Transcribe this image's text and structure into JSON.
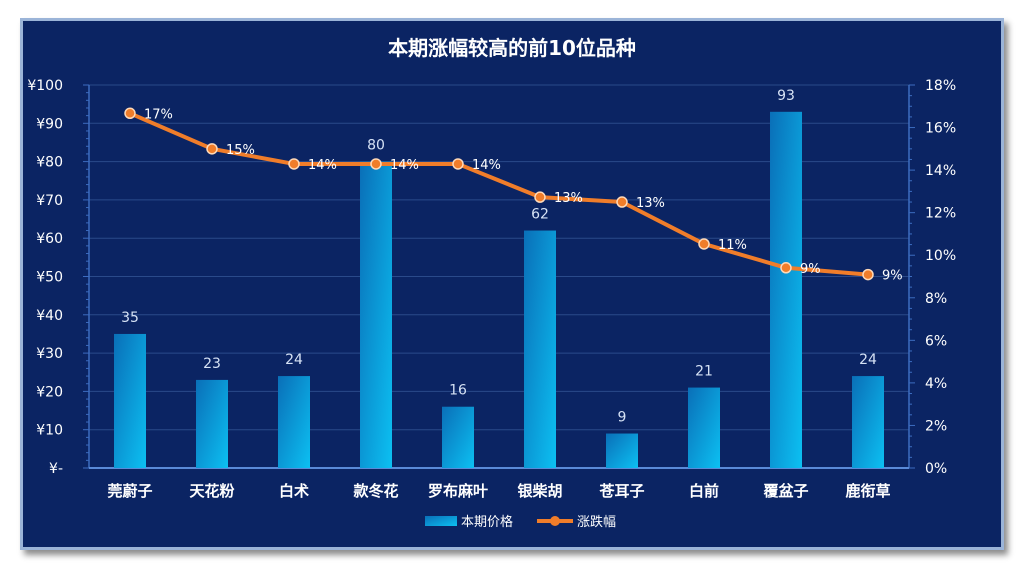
{
  "chart_data": {
    "type": "bar",
    "title": "本期涨幅较高的前10位品种",
    "categories": [
      "莞蔚子",
      "天花粉",
      "白术",
      "款冬花",
      "罗布麻叶",
      "银柴胡",
      "苍耳子",
      "白前",
      "覆盆子",
      "鹿衔草"
    ],
    "series": [
      {
        "name": "本期价格",
        "type": "bar",
        "axis": "left",
        "values": [
          35,
          23,
          24,
          80,
          16,
          62,
          9,
          21,
          93,
          24
        ],
        "labels": [
          "35",
          "23",
          "24",
          "80",
          "16",
          "62",
          "9",
          "21",
          "93",
          "24"
        ]
      },
      {
        "name": "涨跌幅",
        "type": "line",
        "axis": "right",
        "values": [
          16.67,
          15.0,
          14.29,
          14.29,
          14.29,
          12.73,
          12.5,
          10.53,
          9.41,
          9.09
        ],
        "labels": [
          "17%",
          "15%",
          "14%",
          "14%",
          "14%",
          "13%",
          "13%",
          "11%",
          "9%",
          "9%"
        ]
      }
    ],
    "y_left": {
      "ylim": [
        0,
        100
      ],
      "ticks": [
        0,
        10,
        20,
        30,
        40,
        50,
        60,
        70,
        80,
        90,
        100
      ],
      "tick_labels": [
        "¥-",
        "¥10",
        "¥20",
        "¥30",
        "¥40",
        "¥50",
        "¥60",
        "¥70",
        "¥80",
        "¥90",
        "¥100"
      ]
    },
    "y_right": {
      "ylim": [
        0,
        18
      ],
      "ticks": [
        0,
        2,
        4,
        6,
        8,
        10,
        12,
        14,
        16,
        18
      ],
      "tick_labels": [
        "0%",
        "2%",
        "4%",
        "6%",
        "8%",
        "10%",
        "12%",
        "14%",
        "16%",
        "18%"
      ]
    },
    "grid": true,
    "legend": "bottom",
    "colors": {
      "background": "#0b2463",
      "bar_top": "#0a6fb8",
      "bar_bottom": "#0cc0f2",
      "line": "#f07d2a",
      "marker": "#f07d2a",
      "grid": "#2a4a8a"
    }
  }
}
